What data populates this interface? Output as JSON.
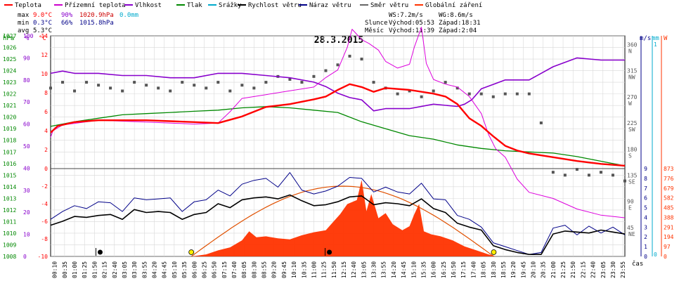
{
  "legend": [
    {
      "label": "Teplota",
      "color": "#ff0000"
    },
    {
      "label": "Přízemní teplota",
      "color": "#cc00cc"
    },
    {
      "label": "Vlhkost",
      "color": "#8800cc"
    },
    {
      "label": "Tlak",
      "color": "#008800"
    },
    {
      "label": "Srážky",
      "color": "#00aacc"
    },
    {
      "label": "Rychlost větru",
      "color": "#000000"
    },
    {
      "label": "Náraz větru",
      "color": "#000088"
    },
    {
      "label": "Směr větru",
      "color": "#666666"
    },
    {
      "label": "Globální záření",
      "color": "#ff3300"
    }
  ],
  "stats": {
    "max": {
      "label": "max",
      "temp": "9.0°C",
      "hum": "90%",
      "press": "1020.9hPa",
      "rain": "0.0mm"
    },
    "min": {
      "label": "min",
      "temp": "0.3°C",
      "hum": "66%",
      "press": "1015.8hPa"
    },
    "avg": {
      "label": "avg",
      "temp": "5.3°C"
    }
  },
  "wind_info": {
    "ws": "WS:7.2m/s",
    "wg": "WG:8.6m/s"
  },
  "sun": {
    "label": "Slunce",
    "rise": "Východ:05:53",
    "set": "Západ:18:31"
  },
  "moon": {
    "label": "Měsíc",
    "rise": "Východ:11:39",
    "set": "Západ:2:04"
  },
  "title": "28.3.2015",
  "xaxis_label": "čas",
  "axis_units": {
    "hpa": "hPa",
    "pct": "%",
    "degc": "°C",
    "ms": "m/s",
    "mm": "mm",
    "w": "W"
  },
  "colors": {
    "temp": "#ff0000",
    "ground": "#dd00dd",
    "humidity": "#8800cc",
    "pressure": "#008800",
    "rain": "#00aacc",
    "wind": "#000000",
    "gust": "#000088",
    "dir": "#555555",
    "solar": "#ff3300",
    "sunArc": "#e05000"
  },
  "chart_data": {
    "type": "line",
    "title": "28.3.2015",
    "x_unit": "hours",
    "x_ticks": [
      "00:10",
      "00:35",
      "01:00",
      "01:25",
      "01:50",
      "02:15",
      "02:40",
      "03:05",
      "03:30",
      "03:55",
      "04:20",
      "04:45",
      "05:10",
      "05:35",
      "06:00",
      "06:25",
      "06:50",
      "07:15",
      "07:40",
      "08:05",
      "08:30",
      "08:55",
      "09:20",
      "09:45",
      "10:10",
      "10:35",
      "11:00",
      "11:25",
      "11:50",
      "12:15",
      "12:40",
      "13:05",
      "13:30",
      "13:55",
      "14:20",
      "14:45",
      "15:10",
      "15:35",
      "16:00",
      "16:25",
      "16:50",
      "17:15",
      "17:40",
      "18:05",
      "18:30",
      "18:55",
      "19:20",
      "19:45",
      "20:10",
      "20:35",
      "21:00",
      "21:25",
      "21:50",
      "22:15",
      "22:40",
      "23:05",
      "23:30",
      "23:55"
    ],
    "axes": {
      "hpa": {
        "min": 1008,
        "max": 1027,
        "ticks": [
          1008,
          1009,
          1010,
          1011,
          1012,
          1013,
          1014,
          1015,
          1016,
          1017,
          1018,
          1019,
          1020,
          1021,
          1022,
          1023,
          1024,
          1025,
          1026,
          1027
        ]
      },
      "pct": {
        "min": 0,
        "max": 100,
        "ticks": [
          0,
          10,
          20,
          30,
          40,
          50,
          60,
          70,
          80,
          90,
          100
        ]
      },
      "degc_upper": {
        "min": 0,
        "max": 14,
        "ticks": [
          0,
          2,
          4,
          6,
          8,
          10,
          12,
          14
        ]
      },
      "degc_lower": {
        "min": -10,
        "max": 0,
        "ticks": [
          0,
          -2,
          -4,
          -6,
          -8,
          -10
        ]
      },
      "dir": {
        "ticks": [
          {
            "v": 45,
            "l": "NE"
          },
          {
            "v": 90,
            "l": "E"
          },
          {
            "v": 135,
            "l": "SE"
          },
          {
            "v": 180,
            "l": "S"
          },
          {
            "v": 225,
            "l": "SW"
          },
          {
            "v": 270,
            "l": "W"
          },
          {
            "v": 315,
            "l": "NW"
          },
          {
            "v": 360,
            "l": "N"
          }
        ]
      },
      "ms": {
        "min": 0,
        "max": 9,
        "ticks": [
          0,
          1,
          2,
          3,
          4,
          5,
          6,
          7,
          8,
          9
        ]
      },
      "mm": {
        "ticks": [
          0,
          1
        ]
      },
      "w": {
        "min": 0,
        "max": 873,
        "ticks": [
          0,
          97,
          194,
          291,
          388,
          485,
          582,
          679,
          776,
          873
        ]
      }
    },
    "series": [
      {
        "name": "Teplota",
        "unit": "°C",
        "x": [
          0,
          0.3,
          1,
          2,
          3,
          4,
          5,
          6,
          7,
          8,
          9,
          10,
          11,
          11.5,
          12,
          12.5,
          13,
          13.5,
          14,
          15,
          16,
          16.5,
          17,
          17.5,
          18,
          18.5,
          19,
          19.5,
          20,
          21,
          22,
          23,
          24
        ],
        "values": [
          3.8,
          4.5,
          4.9,
          5.1,
          5.1,
          5.1,
          5.0,
          4.9,
          4.8,
          5.5,
          6.5,
          6.8,
          7.3,
          7.6,
          8.3,
          8.9,
          8.6,
          8.1,
          8.5,
          8.3,
          7.9,
          7.6,
          6.8,
          5.3,
          4.5,
          3.4,
          2.4,
          1.9,
          1.6,
          1.2,
          0.8,
          0.5,
          0.3
        ]
      },
      {
        "name": "Přízemní teplota",
        "unit": "°C",
        "x": [
          0,
          0.1,
          0.5,
          2,
          4,
          6,
          7,
          7.5,
          8,
          9,
          10,
          11,
          11.5,
          12,
          12.4,
          12.6,
          13,
          13.3,
          13.7,
          14,
          14.5,
          15,
          15.2,
          15.5,
          15.7,
          16,
          16.5,
          17,
          17.5,
          18,
          18.3,
          18.6,
          19,
          19.5,
          20,
          21,
          22,
          23,
          24
        ],
        "values": [
          3.3,
          4.0,
          4.6,
          5.1,
          4.9,
          4.7,
          4.8,
          6.0,
          7.4,
          7.8,
          8.2,
          8.6,
          9.6,
          10.4,
          12.8,
          14.7,
          13.6,
          13.2,
          12.5,
          11.3,
          10.6,
          11.0,
          12.8,
          14.9,
          11.1,
          9.4,
          8.9,
          8.6,
          7.6,
          5.8,
          3.6,
          2.1,
          1.2,
          -1.2,
          -2.7,
          -3.4,
          -4.6,
          -5.3,
          -5.6
        ]
      },
      {
        "name": "Vlhkost",
        "unit": "%",
        "x": [
          0,
          0.5,
          1,
          2,
          3,
          4,
          5,
          6,
          7,
          8,
          9,
          10,
          11,
          11.5,
          12,
          12.5,
          13,
          13.5,
          14,
          15,
          16,
          17,
          17.3,
          17.6,
          18,
          18.5,
          19,
          20,
          21,
          22,
          23,
          24
        ],
        "values": [
          83,
          84,
          83,
          83,
          82,
          82,
          81,
          81,
          83,
          83,
          82,
          81,
          79,
          77,
          74,
          72,
          71,
          66,
          67,
          67,
          69,
          68,
          69,
          71,
          76,
          78,
          80,
          80,
          86,
          90,
          89,
          89
        ]
      },
      {
        "name": "Tlak",
        "unit": "hPa",
        "x": [
          0,
          1,
          2,
          3,
          4,
          5,
          6,
          7,
          8,
          9,
          10,
          11,
          12,
          13,
          14,
          15,
          16,
          17,
          18,
          19,
          20,
          21,
          22,
          23,
          24
        ],
        "values": [
          1019.2,
          1019.6,
          1019.9,
          1020.2,
          1020.3,
          1020.4,
          1020.5,
          1020.6,
          1020.8,
          1020.9,
          1020.8,
          1020.6,
          1020.4,
          1019.6,
          1019.0,
          1018.4,
          1018.1,
          1017.6,
          1017.3,
          1017.1,
          1017.0,
          1016.9,
          1016.6,
          1016.2,
          1015.8
        ]
      },
      {
        "name": "Rychlost větru",
        "unit": "m/s",
        "x": [
          0,
          0.5,
          1,
          1.5,
          2,
          2.5,
          3,
          3.5,
          4,
          4.5,
          5,
          5.5,
          6,
          6.5,
          7,
          7.5,
          8,
          8.5,
          9,
          9.5,
          10,
          10.5,
          11,
          11.5,
          12,
          12.5,
          13,
          13.5,
          14,
          14.5,
          15,
          15.5,
          16,
          16.5,
          17,
          17.5,
          18,
          18.5,
          19,
          19.5,
          20,
          20.5,
          21,
          21.5,
          22,
          22.5,
          23,
          23.5,
          24
        ],
        "values": [
          3.2,
          3.6,
          4.1,
          4.0,
          4.2,
          4.3,
          3.8,
          4.8,
          4.5,
          4.6,
          4.5,
          3.8,
          4.3,
          4.5,
          5.4,
          5.0,
          5.8,
          6.0,
          6.1,
          5.9,
          6.3,
          5.7,
          5.2,
          5.3,
          5.6,
          6.1,
          6.2,
          5.3,
          5.5,
          5.4,
          5.2,
          5.9,
          4.9,
          4.5,
          3.4,
          3.0,
          2.7,
          1.1,
          0.7,
          0.4,
          0.2,
          0.2,
          2.3,
          2.6,
          2.5,
          2.4,
          2.7,
          2.5,
          2.3
        ]
      },
      {
        "name": "Náraz větru",
        "unit": "m/s",
        "x": [
          0,
          0.5,
          1,
          1.5,
          2,
          2.5,
          3,
          3.5,
          4,
          4.5,
          5,
          5.5,
          6,
          6.5,
          7,
          7.5,
          8,
          8.5,
          9,
          9.5,
          10,
          10.5,
          11,
          11.5,
          12,
          12.5,
          13,
          13.5,
          14,
          14.5,
          15,
          15.5,
          16,
          16.5,
          17,
          17.5,
          18,
          18.5,
          19,
          19.5,
          20,
          20.5,
          21,
          21.5,
          22,
          22.5,
          23,
          23.5,
          24
        ],
        "values": [
          3.8,
          4.6,
          5.2,
          4.9,
          5.6,
          5.5,
          4.6,
          6.0,
          5.8,
          5.9,
          6.0,
          4.6,
          5.6,
          5.8,
          6.8,
          6.2,
          7.4,
          7.8,
          8.0,
          7.1,
          8.6,
          6.8,
          6.4,
          6.7,
          7.2,
          8.1,
          8.0,
          6.6,
          7.1,
          6.6,
          6.4,
          7.5,
          5.9,
          5.8,
          4.2,
          3.8,
          3.0,
          1.4,
          1.0,
          0.6,
          0.2,
          0.4,
          2.9,
          3.2,
          2.2,
          3.1,
          2.4,
          3.0,
          2.2
        ]
      },
      {
        "name": "Směr větru",
        "unit": "°",
        "x": [
          0,
          0.5,
          1,
          1.5,
          2,
          2.5,
          3,
          3.5,
          4,
          4.5,
          5,
          5.5,
          6,
          6.5,
          7,
          7.5,
          8,
          8.5,
          9,
          9.5,
          10,
          10.5,
          11,
          11.5,
          12,
          12.5,
          13,
          13.5,
          14,
          14.5,
          15,
          15.5,
          16,
          16.5,
          17,
          17.5,
          18,
          18.5,
          19,
          19.5,
          20,
          20.5,
          21,
          21.5,
          22,
          22.5,
          23,
          23.5,
          24
        ],
        "values": [
          290,
          300,
          285,
          300,
          295,
          290,
          285,
          300,
          295,
          290,
          285,
          300,
          295,
          290,
          300,
          285,
          295,
          290,
          300,
          310,
          305,
          300,
          310,
          320,
          330,
          345,
          340,
          300,
          290,
          280,
          285,
          275,
          285,
          300,
          290,
          280,
          280,
          275,
          280,
          280,
          280,
          230,
          145,
          140,
          150,
          140,
          145,
          140,
          130
        ]
      },
      {
        "name": "Globální záření",
        "unit": "W",
        "x": [
          0,
          5.9,
          6.5,
          7,
          7.5,
          8,
          8.3,
          8.6,
          9,
          9.5,
          10,
          10.5,
          11,
          11.5,
          11.8,
          12.1,
          12.4,
          12.8,
          13,
          13.2,
          13.4,
          13.7,
          14,
          14.3,
          14.7,
          15,
          15.2,
          15.4,
          15.6,
          15.9,
          16.3,
          16.8,
          17.3,
          17.8,
          18.3,
          18.6,
          24
        ],
        "values": [
          0,
          0,
          20,
          60,
          90,
          160,
          250,
          190,
          200,
          180,
          170,
          210,
          240,
          260,
          340,
          420,
          520,
          560,
          760,
          450,
          620,
          380,
          430,
          320,
          260,
          300,
          420,
          520,
          250,
          220,
          200,
          160,
          100,
          60,
          20,
          0,
          0
        ]
      }
    ],
    "sun_curve": {
      "rise_h": 5.88,
      "set_h": 18.52,
      "peak": 0.8
    },
    "markers": [
      {
        "type": "moonset",
        "h": 2.07,
        "label": "●"
      },
      {
        "type": "sunrise",
        "h": 5.88,
        "label": "○"
      },
      {
        "type": "moonrise",
        "h": 11.65,
        "label": "●"
      },
      {
        "type": "sunset",
        "h": 18.52,
        "label": "○"
      }
    ]
  }
}
